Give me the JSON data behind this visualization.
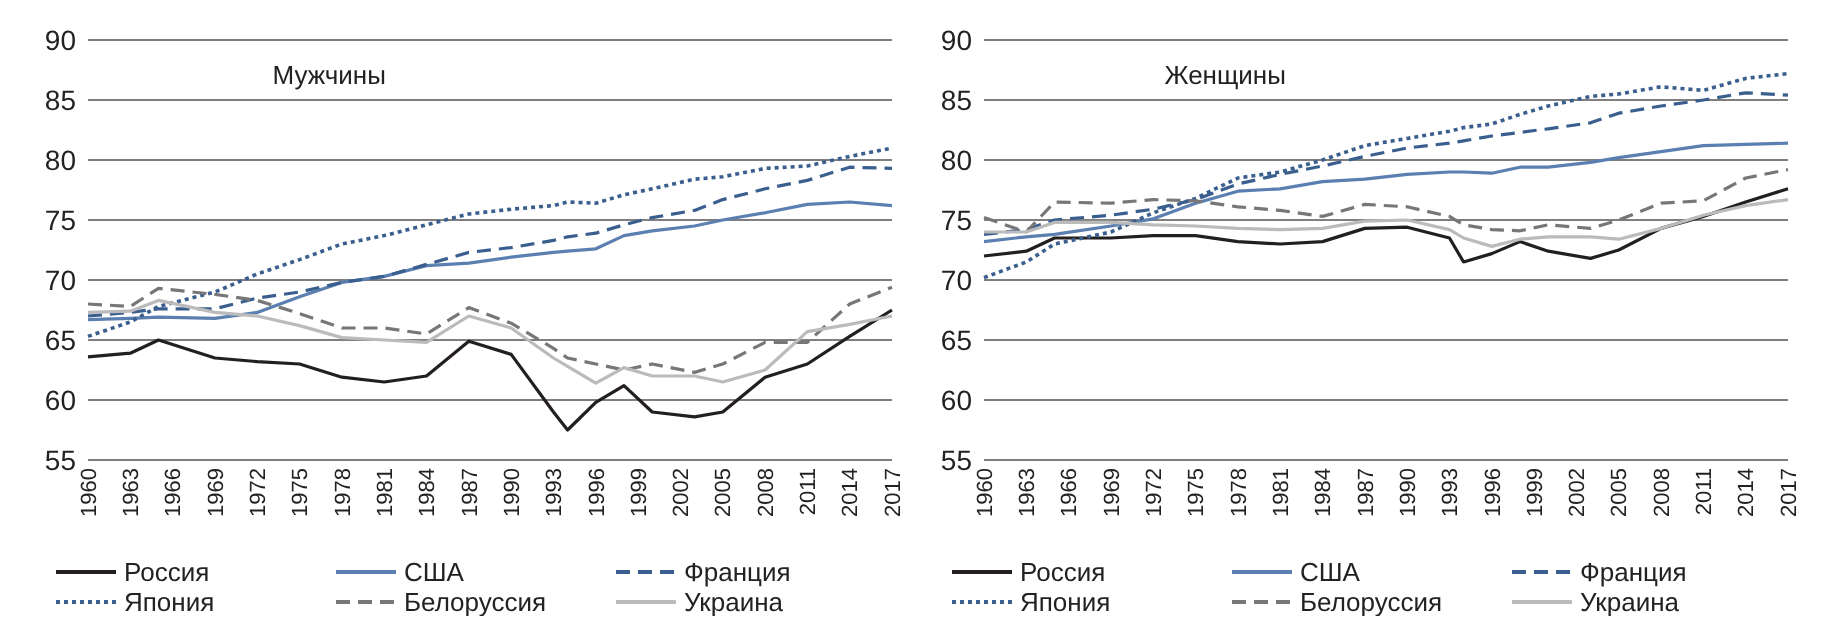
{
  "chart_data": [
    {
      "type": "line",
      "title": "Мужчины",
      "x": [
        1960,
        1963,
        1965,
        1969,
        1972,
        1975,
        1978,
        1981,
        1984,
        1987,
        1990,
        1993,
        1994,
        1996,
        1998,
        2000,
        2003,
        2005,
        2008,
        2011,
        2014,
        2017
      ],
      "xlim": [
        1960,
        2017
      ],
      "xticks": [
        1960,
        1963,
        1966,
        1969,
        1972,
        1975,
        1978,
        1981,
        1984,
        1987,
        1990,
        1993,
        1996,
        1999,
        2002,
        2005,
        2008,
        2011,
        2014,
        2017
      ],
      "ylim": [
        55,
        90
      ],
      "yticks": [
        55,
        60,
        65,
        70,
        75,
        80,
        85,
        90
      ],
      "grid": "y",
      "legend": "bottom",
      "series": [
        {
          "name": "Россия",
          "color": "#231f20",
          "line_style": "solid",
          "values": [
            63.6,
            63.9,
            65.0,
            63.5,
            63.2,
            63.0,
            61.9,
            61.5,
            62.0,
            64.9,
            63.8,
            59.0,
            57.5,
            59.8,
            61.2,
            59.0,
            58.6,
            59.0,
            61.9,
            63.0,
            65.3,
            67.5
          ]
        },
        {
          "name": "США",
          "color": "#5b7fb0",
          "line_style": "solid",
          "values": [
            66.7,
            66.8,
            66.9,
            66.8,
            67.3,
            68.6,
            69.8,
            70.3,
            71.2,
            71.4,
            71.9,
            72.3,
            72.4,
            72.6,
            73.7,
            74.1,
            74.5,
            75.0,
            75.6,
            76.3,
            76.5,
            76.2
          ]
        },
        {
          "name": "Франция",
          "color": "#3a5f8f",
          "line_style": "dashed",
          "values": [
            67.0,
            67.3,
            67.6,
            67.6,
            68.5,
            69.0,
            69.8,
            70.3,
            71.3,
            72.3,
            72.7,
            73.3,
            73.6,
            73.9,
            74.6,
            75.2,
            75.8,
            76.7,
            77.6,
            78.3,
            79.4,
            79.3
          ]
        },
        {
          "name": "Япония",
          "color": "#3a5f8f",
          "line_style": "dotted",
          "values": [
            65.3,
            66.5,
            67.8,
            69.0,
            70.5,
            71.7,
            73.0,
            73.7,
            74.6,
            75.5,
            75.9,
            76.2,
            76.5,
            76.4,
            77.1,
            77.6,
            78.4,
            78.6,
            79.3,
            79.5,
            80.3,
            81.0
          ]
        },
        {
          "name": "Белоруссия",
          "color": "#777777",
          "line_style": "dashed",
          "values": [
            68.0,
            67.8,
            69.3,
            68.8,
            68.3,
            67.2,
            66.0,
            66.0,
            65.5,
            67.7,
            66.4,
            64.3,
            63.5,
            63.0,
            62.5,
            63.0,
            62.3,
            63.0,
            64.8,
            64.8,
            68.0,
            69.4
          ]
        },
        {
          "name": "Украина",
          "color": "#bbbbbb",
          "line_style": "solid",
          "values": [
            67.3,
            67.4,
            68.3,
            67.3,
            67.0,
            66.2,
            65.2,
            65.0,
            64.8,
            67.0,
            66.0,
            63.5,
            62.8,
            61.4,
            62.7,
            62.0,
            62.0,
            61.5,
            62.5,
            65.7,
            66.3,
            67.0
          ]
        }
      ]
    },
    {
      "type": "line",
      "title": "Женщины",
      "x": [
        1960,
        1963,
        1965,
        1969,
        1972,
        1975,
        1978,
        1981,
        1984,
        1987,
        1990,
        1993,
        1994,
        1996,
        1998,
        2000,
        2003,
        2005,
        2008,
        2011,
        2014,
        2017
      ],
      "xlim": [
        1960,
        2017
      ],
      "xticks": [
        1960,
        1963,
        1966,
        1969,
        1972,
        1975,
        1978,
        1981,
        1984,
        1987,
        1990,
        1993,
        1996,
        1999,
        2002,
        2005,
        2008,
        2011,
        2014,
        2017
      ],
      "ylim": [
        55,
        90
      ],
      "yticks": [
        55,
        60,
        65,
        70,
        75,
        80,
        85,
        90
      ],
      "grid": "y",
      "legend": "bottom",
      "series": [
        {
          "name": "Россия",
          "color": "#231f20",
          "line_style": "solid",
          "values": [
            72.0,
            72.4,
            73.5,
            73.5,
            73.7,
            73.7,
            73.2,
            73.0,
            73.2,
            74.3,
            74.4,
            73.5,
            71.5,
            72.2,
            73.2,
            72.4,
            71.8,
            72.5,
            74.3,
            75.3,
            76.5,
            77.6
          ]
        },
        {
          "name": "США",
          "color": "#5b7fb0",
          "line_style": "solid",
          "values": [
            73.2,
            73.6,
            73.8,
            74.5,
            75.1,
            76.4,
            77.4,
            77.6,
            78.2,
            78.4,
            78.8,
            79.0,
            79.0,
            78.9,
            79.4,
            79.4,
            79.8,
            80.2,
            80.7,
            81.2,
            81.3,
            81.4
          ]
        },
        {
          "name": "Франция",
          "color": "#3a5f8f",
          "line_style": "dashed",
          "values": [
            73.8,
            74.2,
            75.0,
            75.4,
            75.9,
            76.7,
            78.0,
            78.8,
            79.5,
            80.3,
            81.0,
            81.4,
            81.6,
            82.0,
            82.3,
            82.6,
            83.1,
            83.9,
            84.5,
            85.0,
            85.6,
            85.4
          ]
        },
        {
          "name": "Япония",
          "color": "#3a5f8f",
          "line_style": "dotted",
          "values": [
            70.2,
            71.5,
            73.0,
            74.0,
            75.6,
            76.8,
            78.5,
            79.0,
            80.0,
            81.2,
            81.8,
            82.4,
            82.7,
            83.0,
            83.8,
            84.5,
            85.3,
            85.5,
            86.1,
            85.8,
            86.8,
            87.2
          ]
        },
        {
          "name": "Белоруссия",
          "color": "#777777",
          "line_style": "dashed",
          "values": [
            75.2,
            74.0,
            76.5,
            76.4,
            76.7,
            76.6,
            76.1,
            75.8,
            75.3,
            76.3,
            76.1,
            75.3,
            74.6,
            74.2,
            74.1,
            74.6,
            74.3,
            75.0,
            76.4,
            76.6,
            78.5,
            79.2
          ]
        },
        {
          "name": "Украина",
          "color": "#bbbbbb",
          "line_style": "solid",
          "values": [
            74.0,
            74.0,
            74.8,
            74.8,
            74.6,
            74.5,
            74.3,
            74.2,
            74.3,
            74.9,
            75.0,
            74.2,
            73.5,
            72.8,
            73.4,
            73.6,
            73.6,
            73.4,
            74.3,
            75.4,
            76.2,
            76.7
          ]
        }
      ]
    }
  ]
}
